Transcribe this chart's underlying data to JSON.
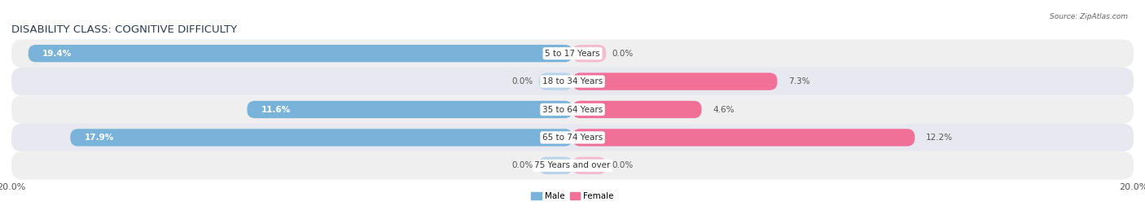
{
  "title": "DISABILITY CLASS: COGNITIVE DIFFICULTY",
  "source": "Source: ZipAtlas.com",
  "categories": [
    "5 to 17 Years",
    "18 to 34 Years",
    "35 to 64 Years",
    "65 to 74 Years",
    "75 Years and over"
  ],
  "male_values": [
    19.4,
    0.0,
    11.6,
    17.9,
    0.0
  ],
  "female_values": [
    0.0,
    7.3,
    4.6,
    12.2,
    0.0
  ],
  "male_color": "#7ab3d9",
  "female_color": "#f07098",
  "male_color_light": "#b8d4eb",
  "female_color_light": "#f5bcd0",
  "row_bg_colors": [
    "#efefef",
    "#e8e8f0"
  ],
  "max_val": 20.0,
  "title_fontsize": 9.5,
  "label_fontsize": 7.5,
  "value_fontsize": 7.5,
  "axis_fontsize": 8,
  "title_color": "#2c3e50",
  "source_color": "#666666",
  "value_color_inside": "#ffffff",
  "value_color_outside": "#555555"
}
